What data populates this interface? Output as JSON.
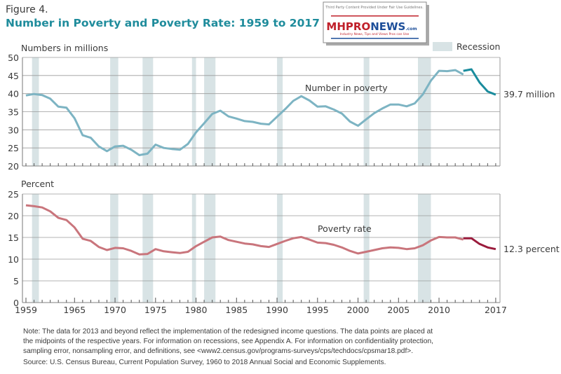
{
  "header": {
    "figure_label": "Figure 4.",
    "title": "Number in Poverty and Poverty Rate: 1959 to 2017"
  },
  "logo": {
    "caption": "Third Party Content Provided Under Fair Use Guidelines.",
    "brand": "MHPRONEWS.com",
    "tagline": "Industry News, Tips and Views Pros can Use"
  },
  "legend": {
    "recession_label": "Recession",
    "placement": "top-right"
  },
  "colors": {
    "recession": "#d8e3e5",
    "number_line": "#7db4c3",
    "number_line_new": "#1a8c9d",
    "rate_line": "#c9757c",
    "rate_line_new": "#9a1b3c",
    "title": "#1f8c9c"
  },
  "notes": {
    "line1": "Note: The data for 2013 and beyond reflect the implementation of the redesigned income questions. The data points are placed at",
    "line2": "the midpoints of the respective years. For information on recessions, see Appendix A. For information on confidentiality protection,",
    "line3": "sampling error, nonsampling error, and definitions, see <www2.census.gov/programs-surveys/cps/techdocs/cpsmar18.pdf>.",
    "source": "Source: U.S. Census Bureau, Current Population Survey, 1960 to 2018 Annual Social and Economic Supplements."
  },
  "chart_data": [
    {
      "type": "line",
      "ylabel": "Numbers in millions",
      "ylim": [
        20,
        50
      ],
      "yticks": [
        20,
        25,
        30,
        35,
        40,
        45,
        50
      ],
      "grid": true,
      "series_label": "Number in poverty",
      "end_label": "39.7 million",
      "recessions": [
        [
          1960.25,
          1961.1
        ],
        [
          1969.9,
          1970.9
        ],
        [
          1973.9,
          1975.2
        ],
        [
          1980.0,
          1980.5
        ],
        [
          1981.5,
          1982.9
        ],
        [
          1990.5,
          1991.2
        ],
        [
          2001.2,
          2001.9
        ],
        [
          2007.9,
          2009.5
        ]
      ],
      "series": [
        {
          "x": [
            1959,
            1960,
            1961,
            1962,
            1963,
            1964,
            1965,
            1966,
            1967,
            1968,
            1969,
            1970,
            1971,
            1972,
            1973,
            1974,
            1975,
            1976,
            1977,
            1978,
            1979,
            1980,
            1981,
            1982,
            1983,
            1984,
            1985,
            1986,
            1987,
            1988,
            1989,
            1990,
            1991,
            1992,
            1993,
            1994,
            1995,
            1996,
            1997,
            1998,
            1999,
            2000,
            2001,
            2002,
            2003,
            2004,
            2005,
            2006,
            2007,
            2008,
            2009,
            2010,
            2011,
            2012,
            2013
          ],
          "values": [
            39.5,
            39.9,
            39.6,
            38.6,
            36.4,
            36.1,
            33.2,
            28.5,
            27.8,
            25.4,
            24.1,
            25.4,
            25.6,
            24.5,
            23.0,
            23.4,
            25.9,
            25.0,
            24.7,
            24.5,
            26.1,
            29.3,
            31.8,
            34.4,
            35.3,
            33.7,
            33.1,
            32.4,
            32.2,
            31.7,
            31.5,
            33.6,
            35.7,
            38.0,
            39.3,
            38.1,
            36.4,
            36.5,
            35.6,
            34.5,
            32.3,
            31.1,
            32.9,
            34.6,
            35.9,
            37.0,
            37.0,
            36.5,
            37.3,
            39.8,
            43.6,
            46.3,
            46.2,
            46.5,
            45.3
          ]
        },
        {
          "x": [
            2013,
            2014,
            2015,
            2016,
            2017
          ],
          "values": [
            46.3,
            46.7,
            43.1,
            40.6,
            39.7
          ]
        }
      ]
    },
    {
      "type": "line",
      "ylabel": "Percent",
      "ylim": [
        0,
        25
      ],
      "yticks": [
        0,
        5,
        10,
        15,
        20,
        25
      ],
      "grid": true,
      "series_label": "Poverty rate",
      "end_label": "12.3 percent",
      "xticks": [
        1959,
        1965,
        1970,
        1975,
        1980,
        1985,
        1990,
        1995,
        2000,
        2005,
        2010,
        2017
      ],
      "xlim": [
        1959,
        2017
      ],
      "recessions": [
        [
          1960.25,
          1961.1
        ],
        [
          1969.9,
          1970.9
        ],
        [
          1973.9,
          1975.2
        ],
        [
          1980.0,
          1980.5
        ],
        [
          1981.5,
          1982.9
        ],
        [
          1990.5,
          1991.2
        ],
        [
          2001.2,
          2001.9
        ],
        [
          2007.9,
          2009.5
        ]
      ],
      "series": [
        {
          "x": [
            1959,
            1960,
            1961,
            1962,
            1963,
            1964,
            1965,
            1966,
            1967,
            1968,
            1969,
            1970,
            1971,
            1972,
            1973,
            1974,
            1975,
            1976,
            1977,
            1978,
            1979,
            1980,
            1981,
            1982,
            1983,
            1984,
            1985,
            1986,
            1987,
            1988,
            1989,
            1990,
            1991,
            1992,
            1993,
            1994,
            1995,
            1996,
            1997,
            1998,
            1999,
            2000,
            2001,
            2002,
            2003,
            2004,
            2005,
            2006,
            2007,
            2008,
            2009,
            2010,
            2011,
            2012,
            2013
          ],
          "values": [
            22.4,
            22.2,
            21.9,
            21.0,
            19.5,
            19.0,
            17.3,
            14.7,
            14.2,
            12.8,
            12.1,
            12.6,
            12.5,
            11.9,
            11.1,
            11.2,
            12.3,
            11.8,
            11.6,
            11.4,
            11.7,
            13.0,
            14.0,
            15.0,
            15.2,
            14.4,
            14.0,
            13.6,
            13.4,
            13.0,
            12.8,
            13.5,
            14.2,
            14.8,
            15.1,
            14.5,
            13.8,
            13.7,
            13.3,
            12.7,
            11.9,
            11.3,
            11.7,
            12.1,
            12.5,
            12.7,
            12.6,
            12.3,
            12.5,
            13.2,
            14.3,
            15.1,
            15.0,
            15.0,
            14.5
          ]
        },
        {
          "x": [
            2013,
            2014,
            2015,
            2016,
            2017
          ],
          "values": [
            14.8,
            14.8,
            13.5,
            12.7,
            12.3
          ]
        }
      ]
    }
  ]
}
